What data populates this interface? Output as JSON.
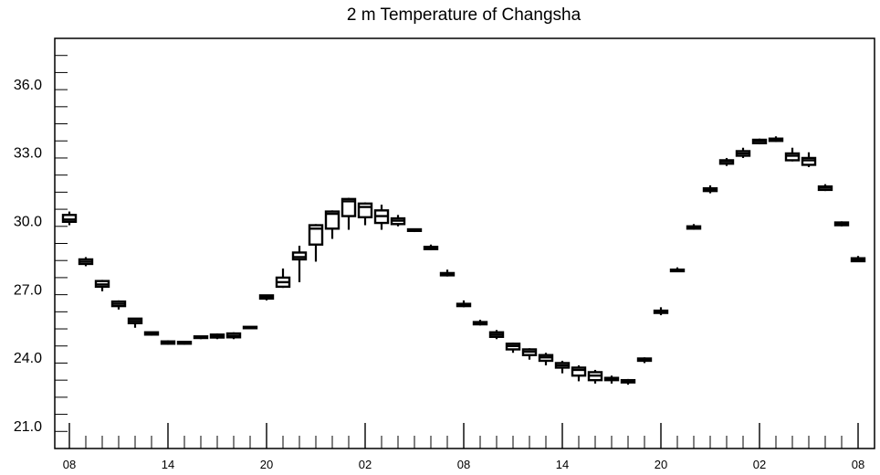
{
  "chart_data": {
    "type": "boxplot",
    "title": "2 m Temperature of Changsha",
    "xlabel": "",
    "ylabel": "",
    "ylim": [
      20.0,
      38.0
    ],
    "y_ticks": [
      21.0,
      24.0,
      27.0,
      30.0,
      33.0,
      36.0
    ],
    "y_tick_labels": [
      "21.0",
      "24.0",
      "27.0",
      "30.0",
      "33.0",
      "36.0"
    ],
    "x_tick_labels": [
      "08",
      "14",
      "20",
      "02",
      "08",
      "14",
      "20",
      "02",
      "08"
    ],
    "grid": false,
    "series": [
      {
        "values": [
          {
            "hour": 0,
            "min": 29.8,
            "q1": 29.95,
            "median": 30.05,
            "q3": 30.25,
            "max": 30.4
          },
          {
            "hour": 1,
            "min": 28.0,
            "q1": 28.1,
            "median": 28.2,
            "q3": 28.3,
            "max": 28.4
          },
          {
            "hour": 2,
            "min": 26.9,
            "q1": 27.1,
            "median": 27.2,
            "q3": 27.35,
            "max": 27.4
          },
          {
            "hour": 3,
            "min": 26.1,
            "q1": 26.25,
            "median": 26.35,
            "q3": 26.45,
            "max": 26.5
          },
          {
            "hour": 4,
            "min": 25.3,
            "q1": 25.5,
            "median": 25.6,
            "q3": 25.7,
            "max": 25.7
          },
          {
            "hour": 5,
            "min": 24.95,
            "q1": 25.0,
            "median": 25.05,
            "q3": 25.1,
            "max": 25.1
          },
          {
            "hour": 6,
            "min": 24.55,
            "q1": 24.6,
            "median": 24.65,
            "q3": 24.7,
            "max": 24.75
          },
          {
            "hour": 7,
            "min": 24.55,
            "q1": 24.6,
            "median": 24.63,
            "q3": 24.68,
            "max": 24.7
          },
          {
            "hour": 8,
            "min": 24.8,
            "q1": 24.85,
            "median": 24.88,
            "q3": 24.92,
            "max": 24.95
          },
          {
            "hour": 9,
            "min": 24.8,
            "q1": 24.87,
            "median": 24.93,
            "q3": 25.0,
            "max": 25.05
          },
          {
            "hour": 10,
            "min": 24.8,
            "q1": 24.88,
            "median": 24.95,
            "q3": 25.05,
            "max": 25.1
          },
          {
            "hour": 11,
            "min": 25.25,
            "q1": 25.28,
            "median": 25.31,
            "q3": 25.34,
            "max": 25.36
          },
          {
            "hour": 12,
            "min": 26.5,
            "q1": 26.58,
            "median": 26.65,
            "q3": 26.72,
            "max": 26.75
          },
          {
            "hour": 13,
            "min": 27.05,
            "q1": 27.1,
            "median": 27.3,
            "q3": 27.5,
            "max": 27.9
          },
          {
            "hour": 14,
            "min": 27.3,
            "q1": 28.3,
            "median": 28.4,
            "q3": 28.6,
            "max": 28.9
          },
          {
            "hour": 15,
            "min": 28.2,
            "q1": 28.95,
            "median": 29.65,
            "q3": 29.8,
            "max": 29.85
          },
          {
            "hour": 16,
            "min": 29.2,
            "q1": 29.65,
            "median": 30.3,
            "q3": 30.4,
            "max": 30.45
          },
          {
            "hour": 17,
            "min": 29.6,
            "q1": 30.2,
            "median": 30.85,
            "q3": 30.95,
            "max": 31.0
          },
          {
            "hour": 18,
            "min": 29.8,
            "q1": 30.15,
            "median": 30.6,
            "q3": 30.75,
            "max": 30.8
          },
          {
            "hour": 19,
            "min": 29.6,
            "q1": 29.9,
            "median": 30.2,
            "q3": 30.45,
            "max": 30.7
          },
          {
            "hour": 20,
            "min": 29.75,
            "q1": 29.85,
            "median": 30.0,
            "q3": 30.1,
            "max": 30.25
          },
          {
            "hour": 21,
            "min": 29.5,
            "q1": 29.55,
            "median": 29.58,
            "q3": 29.62,
            "max": 29.65
          },
          {
            "hour": 22,
            "min": 28.7,
            "q1": 28.75,
            "median": 28.8,
            "q3": 28.85,
            "max": 28.95
          },
          {
            "hour": 23,
            "min": 27.55,
            "q1": 27.6,
            "median": 27.65,
            "q3": 27.7,
            "max": 27.85
          },
          {
            "hour": 24,
            "min": 26.2,
            "q1": 26.25,
            "median": 26.3,
            "q3": 26.35,
            "max": 26.5
          },
          {
            "hour": 25,
            "min": 25.4,
            "q1": 25.45,
            "median": 25.5,
            "q3": 25.55,
            "max": 25.65
          },
          {
            "hour": 26,
            "min": 24.8,
            "q1": 24.9,
            "median": 25.0,
            "q3": 25.1,
            "max": 25.2
          },
          {
            "hour": 27,
            "min": 24.2,
            "q1": 24.35,
            "median": 24.5,
            "q3": 24.6,
            "max": 24.65
          },
          {
            "hour": 28,
            "min": 23.9,
            "q1": 24.1,
            "median": 24.25,
            "q3": 24.35,
            "max": 24.4
          },
          {
            "hour": 29,
            "min": 23.65,
            "q1": 23.85,
            "median": 24.0,
            "q3": 24.1,
            "max": 24.2
          },
          {
            "hour": 30,
            "min": 23.3,
            "q1": 23.55,
            "median": 23.65,
            "q3": 23.75,
            "max": 23.85
          },
          {
            "hour": 31,
            "min": 22.95,
            "q1": 23.2,
            "median": 23.45,
            "q3": 23.55,
            "max": 23.65
          },
          {
            "hour": 32,
            "min": 22.85,
            "q1": 23.0,
            "median": 23.2,
            "q3": 23.35,
            "max": 23.45
          },
          {
            "hour": 33,
            "min": 22.85,
            "q1": 23.0,
            "median": 23.05,
            "q3": 23.1,
            "max": 23.2
          },
          {
            "hour": 34,
            "min": 22.8,
            "q1": 22.9,
            "median": 22.95,
            "q3": 23.0,
            "max": 23.05
          },
          {
            "hour": 35,
            "min": 23.75,
            "q1": 23.85,
            "median": 23.9,
            "q3": 23.95,
            "max": 24.0
          },
          {
            "hour": 36,
            "min": 25.85,
            "q1": 25.95,
            "median": 26.0,
            "q3": 26.05,
            "max": 26.2
          },
          {
            "hour": 37,
            "min": 27.75,
            "q1": 27.78,
            "median": 27.8,
            "q3": 27.85,
            "max": 27.95
          },
          {
            "hour": 38,
            "min": 29.6,
            "q1": 29.65,
            "median": 29.7,
            "q3": 29.75,
            "max": 29.85
          },
          {
            "hour": 39,
            "min": 31.2,
            "q1": 31.3,
            "median": 31.35,
            "q3": 31.42,
            "max": 31.55
          },
          {
            "hour": 40,
            "min": 32.4,
            "q1": 32.5,
            "median": 32.6,
            "q3": 32.65,
            "max": 32.75
          },
          {
            "hour": 41,
            "min": 32.75,
            "q1": 32.85,
            "median": 32.95,
            "q3": 33.05,
            "max": 33.2
          },
          {
            "hour": 42,
            "min": 33.35,
            "q1": 33.4,
            "median": 33.5,
            "q3": 33.55,
            "max": 33.6
          },
          {
            "hour": 43,
            "min": 33.45,
            "q1": 33.5,
            "median": 33.55,
            "q3": 33.6,
            "max": 33.7
          },
          {
            "hour": 44,
            "min": 32.6,
            "q1": 32.65,
            "median": 32.85,
            "q3": 32.95,
            "max": 33.2
          },
          {
            "hour": 45,
            "min": 32.35,
            "q1": 32.45,
            "median": 32.65,
            "q3": 32.75,
            "max": 33.0
          },
          {
            "hour": 46,
            "min": 31.3,
            "q1": 31.35,
            "median": 31.45,
            "q3": 31.5,
            "max": 31.6
          },
          {
            "hour": 47,
            "min": 29.75,
            "q1": 29.8,
            "median": 29.88,
            "q3": 29.92,
            "max": 29.97
          },
          {
            "hour": 48,
            "min": 28.2,
            "q1": 28.22,
            "median": 28.3,
            "q3": 28.35,
            "max": 28.45
          }
        ]
      }
    ]
  }
}
